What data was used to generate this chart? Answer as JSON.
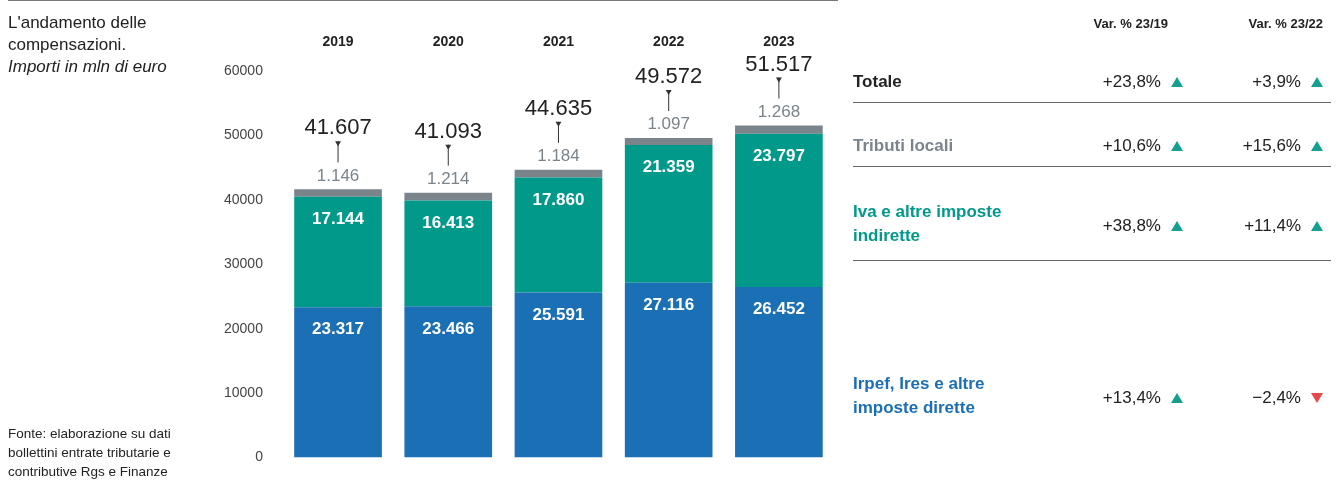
{
  "chart_data": {
    "type": "bar",
    "stacked": true,
    "title": "L'andamento delle compensazioni.",
    "subtitle": "Importi in mln di euro",
    "categories": [
      "2019",
      "2020",
      "2021",
      "2022",
      "2023"
    ],
    "series": [
      {
        "name": "Irpef, Ires e altre imposte dirette",
        "color": "#1a6fb5",
        "values": [
          23317,
          23466,
          25591,
          27116,
          26452
        ],
        "value_labels": [
          "23.317",
          "23.466",
          "25.591",
          "27.116",
          "26.452"
        ]
      },
      {
        "name": "Iva e altre imposte indirette",
        "color": "#00998a",
        "values": [
          17144,
          16413,
          17860,
          21359,
          23797
        ],
        "value_labels": [
          "17.144",
          "16.413",
          "17.860",
          "21.359",
          "23.797"
        ]
      },
      {
        "name": "Tributi locali",
        "color": "#7b848b",
        "values": [
          1146,
          1214,
          1184,
          1097,
          1268
        ],
        "value_labels": [
          "1.146",
          "1.214",
          "1.184",
          "1.097",
          "1.268"
        ]
      }
    ],
    "totals": [
      "41.607",
      "41.093",
      "44.635",
      "49.572",
      "51.517"
    ],
    "ylim": [
      0,
      60000
    ],
    "yticks": [
      0,
      10000,
      20000,
      30000,
      40000,
      50000,
      60000
    ],
    "grid": false,
    "legend": false,
    "annotations": [
      "Fonte: elaborazione su dati bollettini entrate tributarie e contributive Rgs e Finanze",
      "Var. % 23/19",
      "Var. % 23/22",
      "Totale",
      "+23,8%",
      "+3,9%",
      "+10,6%",
      "+15,6%",
      "+38,8%",
      "+11,4%",
      "+13,4%",
      "−2,4%"
    ]
  }
}
